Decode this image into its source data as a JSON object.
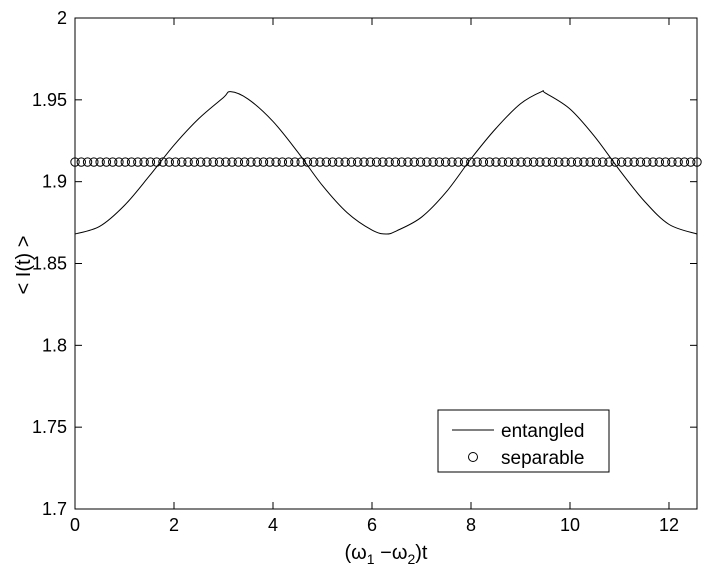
{
  "chart_data": {
    "type": "line",
    "xlabel": {
      "prefix": "(ω",
      "sub1": "1",
      "mid": " −ω",
      "sub2": "2",
      "suffix": ")t"
    },
    "ylabel": "< I(t) >",
    "xlim": [
      0,
      12.566
    ],
    "ylim": [
      1.7,
      2.0
    ],
    "xticks": [
      0,
      2,
      4,
      6,
      8,
      10,
      12
    ],
    "xtick_labels": [
      "0",
      "2",
      "4",
      "6",
      "8",
      "10",
      "12"
    ],
    "yticks": [
      1.7,
      1.75,
      1.8,
      1.85,
      1.9,
      1.95,
      2.0
    ],
    "ytick_labels": [
      "1.7",
      "1.75",
      "1.8",
      "1.85",
      "1.9",
      "1.95",
      "2"
    ],
    "grid": false,
    "legend_position": "bottom-right",
    "series": [
      {
        "name": "entangled",
        "style": "solid-line",
        "color": "#000000",
        "x": [
          0,
          0.5,
          1.0,
          1.5,
          2.0,
          2.5,
          3.0,
          3.1416,
          3.5,
          4.0,
          4.5,
          5.0,
          5.5,
          6.0,
          6.2832,
          6.5,
          7.0,
          7.5,
          8.0,
          8.5,
          9.0,
          9.4248,
          9.5,
          10.0,
          10.5,
          11.0,
          11.5,
          12.0,
          12.566
        ],
        "y": [
          1.868,
          1.8727,
          1.8855,
          1.9034,
          1.9223,
          1.9385,
          1.9514,
          1.955,
          1.9504,
          1.9368,
          1.9181,
          1.8976,
          1.881,
          1.8704,
          1.868,
          1.87,
          1.8783,
          1.8937,
          1.914,
          1.9324,
          1.9476,
          1.955,
          1.9542,
          1.9444,
          1.9275,
          1.9071,
          1.8882,
          1.8739,
          1.868
        ]
      },
      {
        "name": "separable",
        "style": "circle-markers",
        "color": "#000000",
        "x_start": 0,
        "x_end": 12.566,
        "count": 100,
        "y": 1.912
      }
    ]
  }
}
